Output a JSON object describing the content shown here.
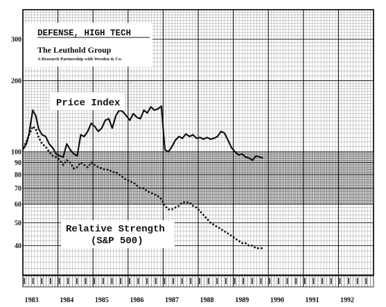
{
  "chart_data": {
    "type": "line",
    "title": "DEFENSE, HIGH TECH",
    "subtitle_line1": "The Leuthold Group",
    "subtitle_line2": "A Research Partnership with Weeden & Co.",
    "scale": "log",
    "ylim": [
      30,
      400
    ],
    "xlim": [
      1983.0,
      1993.0
    ],
    "grid": true,
    "y_ticks": [
      40,
      50,
      60,
      70,
      80,
      90,
      100,
      200,
      300
    ],
    "x_ticks": [
      "1983",
      "1984",
      "1985",
      "1986",
      "1987",
      "1988",
      "1989",
      "1990",
      "1991",
      "1992"
    ],
    "shaded_band": [
      60,
      100
    ],
    "series": [
      {
        "name": "Price Index",
        "style": "solid",
        "color": "#111111",
        "x": [
          1983.0,
          1983.1,
          1983.18,
          1983.28,
          1983.37,
          1983.45,
          1983.55,
          1983.65,
          1983.75,
          1983.85,
          1983.95,
          1984.05,
          1984.15,
          1984.25,
          1984.35,
          1984.45,
          1984.55,
          1984.65,
          1984.75,
          1984.85,
          1984.95,
          1985.05,
          1985.15,
          1985.25,
          1985.35,
          1985.45,
          1985.55,
          1985.65,
          1985.75,
          1985.85,
          1985.95,
          1986.05,
          1986.15,
          1986.25,
          1986.35,
          1986.45,
          1986.55,
          1986.65,
          1986.75,
          1986.85,
          1986.95,
          1987.05,
          1987.15,
          1987.25,
          1987.35,
          1987.45,
          1987.55,
          1987.65,
          1987.75,
          1987.85,
          1987.95,
          1988.05,
          1988.15,
          1988.25,
          1988.35,
          1988.45,
          1988.55,
          1988.65,
          1988.75,
          1988.85,
          1988.95,
          1989.05,
          1989.15,
          1989.25,
          1989.35,
          1989.45,
          1989.55,
          1989.65,
          1989.75,
          1989.85
        ],
        "values": [
          102,
          108,
          120,
          150,
          142,
          125,
          118,
          116,
          108,
          104,
          98,
          96,
          95,
          108,
          102,
          98,
          96,
          118,
          116,
          122,
          132,
          128,
          122,
          126,
          136,
          138,
          126,
          142,
          150,
          148,
          142,
          136,
          145,
          140,
          138,
          150,
          146,
          155,
          150,
          152,
          156,
          102,
          100,
          105,
          112,
          116,
          114,
          119,
          116,
          118,
          114,
          115,
          113,
          115,
          113,
          114,
          116,
          122,
          120,
          112,
          104,
          100,
          97,
          98,
          95,
          94,
          92,
          96,
          95,
          94
        ]
      },
      {
        "name": "Relative Strength (S&P 500)",
        "style": "dotted",
        "color": "#111111",
        "x": [
          1983.0,
          1983.1,
          1983.18,
          1983.28,
          1983.37,
          1983.45,
          1983.55,
          1983.65,
          1983.75,
          1983.85,
          1983.95,
          1984.05,
          1984.15,
          1984.25,
          1984.35,
          1984.45,
          1984.55,
          1984.65,
          1984.75,
          1984.85,
          1984.95,
          1985.05,
          1985.15,
          1985.25,
          1985.35,
          1985.45,
          1985.55,
          1985.65,
          1985.75,
          1985.85,
          1985.95,
          1986.05,
          1986.15,
          1986.25,
          1986.35,
          1986.45,
          1986.55,
          1986.65,
          1986.75,
          1986.85,
          1986.95,
          1987.05,
          1987.15,
          1987.25,
          1987.35,
          1987.45,
          1987.55,
          1987.65,
          1987.75,
          1987.85,
          1987.95,
          1988.05,
          1988.15,
          1988.25,
          1988.35,
          1988.45,
          1988.55,
          1988.65,
          1988.75,
          1988.85,
          1988.95,
          1989.05,
          1989.15,
          1989.25,
          1989.35,
          1989.45,
          1989.55,
          1989.65,
          1989.75,
          1989.85
        ],
        "values": [
          104,
          110,
          118,
          128,
          125,
          115,
          108,
          105,
          100,
          96,
          95,
          92,
          88,
          92,
          90,
          85,
          86,
          90,
          88,
          86,
          90,
          88,
          86,
          85,
          84,
          84,
          82,
          82,
          80,
          78,
          76,
          75,
          74,
          72,
          70,
          70,
          68,
          67,
          66,
          65,
          63,
          59,
          57,
          57,
          58,
          59,
          61,
          61,
          61,
          59,
          58,
          56,
          54,
          52,
          50,
          49,
          48,
          47,
          46,
          45,
          44,
          43,
          42,
          41,
          41,
          40,
          40,
          39,
          39,
          39
        ]
      }
    ],
    "annotations": {
      "price_label": "Price Index",
      "rs_label_line1": "Relative Strength",
      "rs_label_line2": "(S&P 500)"
    }
  }
}
